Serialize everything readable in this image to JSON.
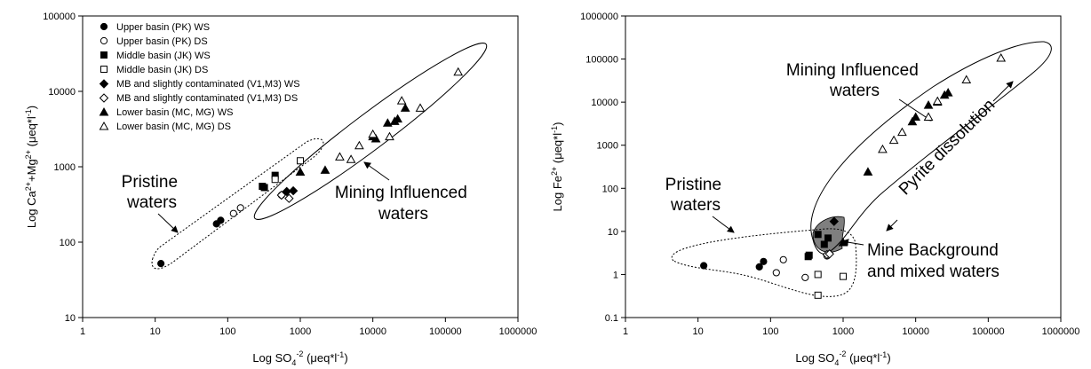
{
  "chart_data": [
    {
      "type": "scatter",
      "xlabel": {
        "main": "Log SO",
        "sub": "4",
        "sup": "-2",
        "units_open": "  (μeq*l",
        "units_sup": "-1",
        "units_close": ")"
      },
      "ylabel": {
        "a": "Log Ca",
        "a_sup": "2+",
        "b": "+Mg",
        "b_sup": "2+",
        "units_open": " (μeq*l",
        "units_sup": "-1",
        "units_close": ")"
      },
      "x_scale": "log",
      "y_scale": "log",
      "xlim": [
        1,
        1000000
      ],
      "ylim": [
        10,
        100000
      ],
      "x_ticks": [
        "1",
        "10",
        "100",
        "1000",
        "10000",
        "100000",
        "1000000"
      ],
      "y_ticks": [
        "10",
        "100",
        "1000",
        "10000",
        "100000"
      ],
      "legend_position": "top-left",
      "legend": [
        {
          "label": "Upper basin (PK) WS",
          "marker": "circle",
          "fill": "filled"
        },
        {
          "label": "Upper basin (PK) DS",
          "marker": "circle",
          "fill": "open"
        },
        {
          "label": "Middle basin (JK) WS",
          "marker": "square",
          "fill": "filled"
        },
        {
          "label": "Middle basin (JK) DS",
          "marker": "square",
          "fill": "open"
        },
        {
          "label": "MB and slightly contaminated (V1,M3) WS",
          "marker": "diamond",
          "fill": "filled"
        },
        {
          "label": "MB and slightly contaminated (V1,M3) DS",
          "marker": "diamond",
          "fill": "open"
        },
        {
          "label": "Lower basin (MC, MG) WS",
          "marker": "triangle",
          "fill": "filled"
        },
        {
          "label": "Lower basin (MC, MG) DS",
          "marker": "triangle",
          "fill": "open"
        }
      ],
      "series": [
        {
          "marker": "circle",
          "fill": "filled",
          "points": [
            [
              12,
              52
            ],
            [
              70,
              175
            ],
            [
              80,
              195
            ]
          ]
        },
        {
          "marker": "circle",
          "fill": "open",
          "points": [
            [
              120,
              240
            ],
            [
              150,
              285
            ],
            [
              550,
              420
            ]
          ]
        },
        {
          "marker": "square",
          "fill": "filled",
          "points": [
            [
              300,
              550
            ],
            [
              320,
              530
            ],
            [
              450,
              770
            ]
          ]
        },
        {
          "marker": "square",
          "fill": "open",
          "points": [
            [
              450,
              680
            ],
            [
              1000,
              1200
            ]
          ]
        },
        {
          "marker": "diamond",
          "fill": "filled",
          "points": [
            [
              650,
              470
            ],
            [
              800,
              480
            ]
          ]
        },
        {
          "marker": "diamond",
          "fill": "open",
          "points": [
            [
              550,
              420
            ],
            [
              700,
              380
            ]
          ]
        },
        {
          "marker": "triangle",
          "fill": "filled",
          "points": [
            [
              1000,
              850
            ],
            [
              2200,
              900
            ],
            [
              10000,
              2500
            ],
            [
              11000,
              2350
            ],
            [
              16000,
              3800
            ],
            [
              20000,
              4000
            ],
            [
              22000,
              4300
            ],
            [
              28000,
              6000
            ]
          ]
        },
        {
          "marker": "triangle",
          "fill": "open",
          "points": [
            [
              3500,
              1350
            ],
            [
              5000,
              1250
            ],
            [
              6500,
              1900
            ],
            [
              10000,
              2700
            ],
            [
              17000,
              2500
            ],
            [
              25000,
              7500
            ],
            [
              45000,
              6000
            ],
            [
              150000,
              18000
            ]
          ]
        }
      ],
      "annotations": [
        {
          "lines": [
            "Pristine",
            "waters"
          ]
        },
        {
          "lines": [
            "Mining Influenced",
            "waters"
          ]
        }
      ]
    },
    {
      "type": "scatter",
      "xlabel": {
        "main": "Log SO",
        "sub": "4",
        "sup": "-2",
        "units_open": "  (μeq*l",
        "units_sup": "-1",
        "units_close": ")"
      },
      "ylabel": {
        "a": "Log Fe",
        "a_sup": "2+",
        "units_open": " (μeq*l",
        "units_sup": "-1",
        "units_close": ")"
      },
      "x_scale": "log",
      "y_scale": "log",
      "xlim": [
        1,
        1000000
      ],
      "ylim": [
        0.1,
        1000000
      ],
      "x_ticks": [
        "1",
        "10",
        "100",
        "1000",
        "10000",
        "100000",
        "1000000"
      ],
      "y_ticks": [
        "0.1",
        "1",
        "10",
        "100",
        "1000",
        "10000",
        "100000",
        "1000000"
      ],
      "series": [
        {
          "marker": "circle",
          "fill": "filled",
          "points": [
            [
              12,
              1.6
            ],
            [
              70,
              1.5
            ],
            [
              80,
              2.0
            ]
          ]
        },
        {
          "marker": "circle",
          "fill": "open",
          "points": [
            [
              120,
              1.1
            ],
            [
              150,
              2.2
            ],
            [
              300,
              0.85
            ],
            [
              600,
              2.7
            ]
          ]
        },
        {
          "marker": "square",
          "fill": "filled",
          "points": [
            [
              330,
              2.6
            ],
            [
              340,
              2.8
            ],
            [
              450,
              8.5
            ],
            [
              550,
              5.0
            ],
            [
              620,
              7.0
            ]
          ]
        },
        {
          "marker": "square",
          "fill": "open",
          "points": [
            [
              450,
              0.33
            ],
            [
              450,
              1.0
            ],
            [
              1000,
              0.9
            ]
          ]
        },
        {
          "marker": "diamond",
          "fill": "filled",
          "points": [
            [
              750,
              17
            ]
          ]
        },
        {
          "marker": "diamond",
          "fill": "open",
          "points": [
            [
              600,
              2.9
            ],
            [
              650,
              3.0
            ]
          ]
        },
        {
          "marker": "triangle",
          "fill": "filled",
          "points": [
            [
              1000,
              5.5
            ],
            [
              2200,
              240
            ],
            [
              9000,
              3500
            ],
            [
              10000,
              4500
            ],
            [
              15000,
              8500
            ],
            [
              20000,
              10000
            ],
            [
              25000,
              14500
            ],
            [
              28000,
              16500
            ]
          ]
        },
        {
          "marker": "triangle",
          "fill": "open",
          "points": [
            [
              3500,
              800
            ],
            [
              5000,
              1300
            ],
            [
              6500,
              2000
            ],
            [
              15000,
              4500
            ],
            [
              20000,
              10500
            ],
            [
              50000,
              33000
            ],
            [
              150000,
              105000
            ]
          ]
        }
      ],
      "annotations": [
        {
          "lines": [
            "Mining Influenced",
            "waters"
          ]
        },
        {
          "lines": [
            "Pristine",
            "waters"
          ]
        },
        {
          "lines": [
            "Mine Background",
            "and mixed waters"
          ]
        },
        {
          "lines": [
            "Pyrite dissolution"
          ]
        }
      ]
    }
  ]
}
